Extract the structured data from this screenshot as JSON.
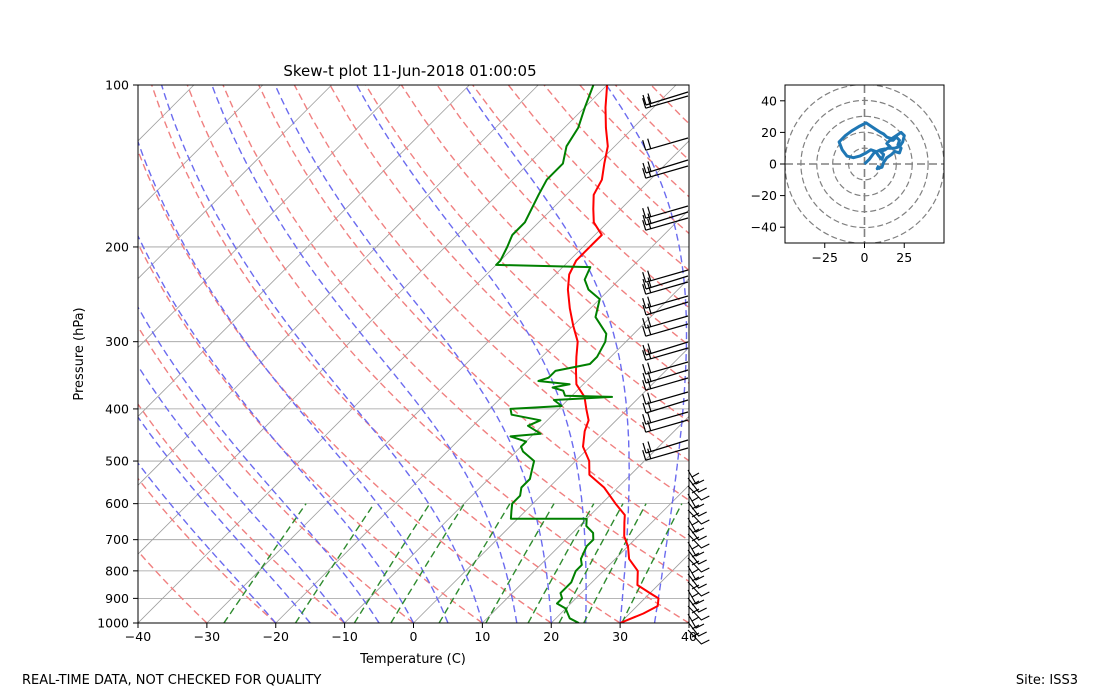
{
  "footer": {
    "quality_note": "REAL-TIME DATA, NOT CHECKED FOR QUALITY",
    "site_label": "Site: ISS3"
  },
  "chart_data": [
    {
      "type": "line",
      "title": "Skew-t plot 11-Jun-2018 01:00:05",
      "xlabel": "Temperature (C)",
      "ylabel": "Pressure (hPa)",
      "xlim": [
        -40,
        40
      ],
      "ylim": [
        1000,
        100
      ],
      "y_scale": "log",
      "x_ticks": [
        -40,
        -30,
        -20,
        -10,
        0,
        10,
        20,
        30,
        40
      ],
      "y_ticks": [
        1000,
        900,
        800,
        700,
        600,
        500,
        400,
        300,
        200,
        100
      ],
      "grid": true,
      "colors": {
        "temperature": "#ff0000",
        "dewpoint": "#008000",
        "dry_adiabats": "#f08080",
        "moist_adiabats": "#6b6bef",
        "mixing_ratio": "#2e8b2e",
        "isotherms": "#9e9e9e",
        "wind_barbs": "#000000"
      },
      "series": [
        {
          "key": "temperature",
          "points": [
            [
              1000,
              30
            ],
            [
              960,
              32
            ],
            [
              930,
              33
            ],
            [
              900,
              32
            ],
            [
              880,
              30
            ],
            [
              850,
              27
            ],
            [
              800,
              25
            ],
            [
              760,
              22
            ],
            [
              720,
              20
            ],
            [
              690,
              18
            ],
            [
              650,
              16
            ],
            [
              630,
              15
            ],
            [
              600,
              12
            ],
            [
              560,
              8
            ],
            [
              530,
              4
            ],
            [
              500,
              2
            ],
            [
              470,
              -1
            ],
            [
              440,
              -3
            ],
            [
              420,
              -4
            ],
            [
              400,
              -6
            ],
            [
              380,
              -8
            ],
            [
              360,
              -11
            ],
            [
              340,
              -13
            ],
            [
              320,
              -15
            ],
            [
              300,
              -17
            ],
            [
              280,
              -20
            ],
            [
              260,
              -23
            ],
            [
              240,
              -26
            ],
            [
              225,
              -28
            ],
            [
              212,
              -29
            ],
            [
              205,
              -29
            ],
            [
              195,
              -29
            ],
            [
              190,
              -29
            ],
            [
              180,
              -32
            ],
            [
              170,
              -34
            ],
            [
              160,
              -36
            ],
            [
              150,
              -37
            ],
            [
              140,
              -39
            ],
            [
              130,
              -41
            ],
            [
              120,
              -44
            ],
            [
              110,
              -47
            ],
            [
              100,
              -50
            ]
          ]
        },
        {
          "key": "dewpoint",
          "points": [
            [
              1000,
              24
            ],
            [
              980,
              22
            ],
            [
              960,
              21
            ],
            [
              940,
              20
            ],
            [
              920,
              18
            ],
            [
              900,
              18
            ],
            [
              880,
              17
            ],
            [
              860,
              17
            ],
            [
              840,
              17
            ],
            [
              800,
              16
            ],
            [
              780,
              16
            ],
            [
              760,
              15
            ],
            [
              720,
              14
            ],
            [
              700,
              14
            ],
            [
              680,
              13
            ],
            [
              660,
              11
            ],
            [
              640,
              10
            ],
            [
              640,
              -1
            ],
            [
              620,
              -2
            ],
            [
              600,
              -3
            ],
            [
              580,
              -3
            ],
            [
              560,
              -4
            ],
            [
              540,
              -4
            ],
            [
              520,
              -5
            ],
            [
              500,
              -6
            ],
            [
              480,
              -9
            ],
            [
              470,
              -10
            ],
            [
              460,
              -10
            ],
            [
              450,
              -13
            ],
            [
              445,
              -9
            ],
            [
              430,
              -12
            ],
            [
              420,
              -11
            ],
            [
              410,
              -16
            ],
            [
              400,
              -17
            ],
            [
              395,
              -10
            ],
            [
              385,
              -12
            ],
            [
              380,
              -4
            ],
            [
              378,
              -11
            ],
            [
              370,
              -12
            ],
            [
              365,
              -14
            ],
            [
              360,
              -12
            ],
            [
              355,
              -17
            ],
            [
              350,
              -16
            ],
            [
              340,
              -16
            ],
            [
              330,
              -12
            ],
            [
              320,
              -12
            ],
            [
              300,
              -13
            ],
            [
              290,
              -14
            ],
            [
              270,
              -18
            ],
            [
              250,
              -20
            ],
            [
              240,
              -23
            ],
            [
              230,
              -25
            ],
            [
              218,
              -26
            ],
            [
              216,
              -40
            ],
            [
              212,
              -40
            ],
            [
              200,
              -41
            ],
            [
              190,
              -42
            ],
            [
              180,
              -42
            ],
            [
              160,
              -44
            ],
            [
              150,
              -45
            ],
            [
              140,
              -45
            ],
            [
              130,
              -47
            ],
            [
              120,
              -48
            ],
            [
              110,
              -50
            ],
            [
              100,
              -52
            ]
          ]
        }
      ]
    },
    {
      "type": "line",
      "title": "",
      "xlim": [
        -50,
        50
      ],
      "ylim": [
        -50,
        50
      ],
      "x_ticks": [
        -25,
        0,
        25
      ],
      "y_ticks": [
        -40,
        -20,
        0,
        20,
        40
      ],
      "rings": [
        10,
        20,
        30,
        40,
        50
      ],
      "color": "#1f77b4",
      "points": [
        [
          0,
          0
        ],
        [
          3,
          3
        ],
        [
          6,
          7
        ],
        [
          10,
          9
        ],
        [
          15,
          10
        ],
        [
          19,
          10
        ],
        [
          22,
          11
        ],
        [
          24,
          14
        ],
        [
          25,
          18
        ],
        [
          23,
          20
        ],
        [
          20,
          18
        ],
        [
          17,
          16
        ],
        [
          14,
          17
        ],
        [
          12,
          19
        ],
        [
          10,
          20
        ],
        [
          7,
          22
        ],
        [
          4,
          24
        ],
        [
          1,
          26
        ],
        [
          -3,
          24
        ],
        [
          -8,
          21
        ],
        [
          -12,
          18
        ],
        [
          -16,
          14
        ],
        [
          -14,
          9
        ],
        [
          -11,
          5
        ],
        [
          -7,
          4
        ],
        [
          -3,
          5
        ],
        [
          1,
          7
        ],
        [
          4,
          9
        ],
        [
          7,
          8
        ],
        [
          9,
          5
        ],
        [
          11,
          3
        ],
        [
          12,
          6
        ],
        [
          10,
          8
        ],
        [
          13,
          9
        ],
        [
          16,
          11
        ],
        [
          14,
          13
        ],
        [
          16,
          15
        ],
        [
          18,
          15
        ],
        [
          20,
          17
        ],
        [
          22,
          15
        ],
        [
          21,
          12
        ],
        [
          23,
          10
        ],
        [
          22,
          7
        ],
        [
          19,
          8
        ],
        [
          17,
          6
        ],
        [
          14,
          4
        ],
        [
          12,
          1
        ],
        [
          11,
          -2
        ],
        [
          8,
          -3
        ],
        [
          9,
          -1
        ]
      ]
    }
  ]
}
